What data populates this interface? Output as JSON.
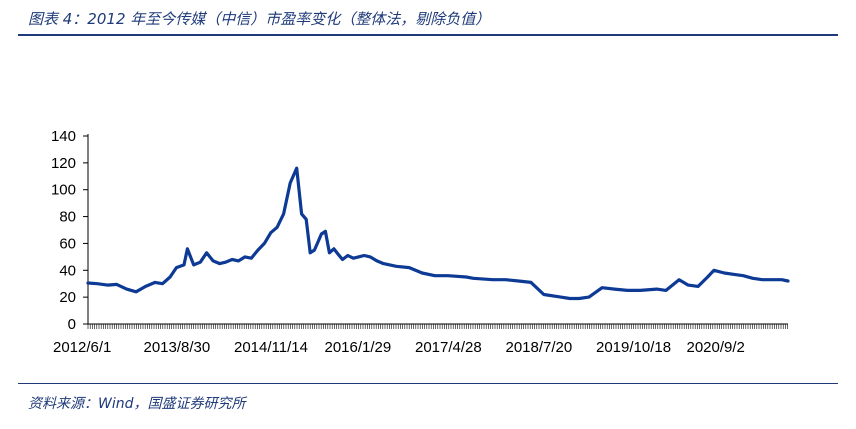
{
  "header": {
    "title": "图表 4：2012 年至今传媒（中信）市盈率变化（整体法，剔除负值）"
  },
  "footer": {
    "source": "资料来源：Wind，国盛证券研究所"
  },
  "colors": {
    "line": "#0d3a94",
    "accent": "#1f3a7a"
  },
  "chart_data": {
    "type": "line",
    "title": "",
    "xlabel": "",
    "ylabel": "",
    "ylim": [
      0,
      140
    ],
    "yticks": [
      0,
      20,
      40,
      60,
      80,
      100,
      120,
      140
    ],
    "ytick_labels": [
      "0",
      "20",
      "40",
      "60",
      "80",
      "100",
      "120",
      "140"
    ],
    "xtick_labels": [
      "2012/6/1",
      "2013/8/30",
      "2014/11/14",
      "2016/1/29",
      "2017/4/28",
      "2018/7/20",
      "2019/10/18",
      "2020/9/2"
    ],
    "grid": false,
    "legend": "none",
    "series": [
      {
        "x": [
          "2012/6/1",
          "2012/7/15",
          "2012/9/1",
          "2012/10/15",
          "2012/12/1",
          "2013/1/15",
          "2013/3/1",
          "2013/4/15",
          "2013/5/20",
          "2013/6/25",
          "2013/7/25",
          "2013/8/30",
          "2013/9/15",
          "2013/10/15",
          "2013/11/15",
          "2013/12/15",
          "2014/1/15",
          "2014/2/15",
          "2014/3/15",
          "2014/4/15",
          "2014/5/15",
          "2014/6/15",
          "2014/7/15",
          "2014/8/15",
          "2014/9/15",
          "2014/10/15",
          "2014/11/14",
          "2014/12/15",
          "2015/1/15",
          "2015/2/15",
          "2015/3/10",
          "2015/4/1",
          "2015/4/20",
          "2015/5/10",
          "2015/6/1",
          "2015/6/12",
          "2015/7/1",
          "2015/7/20",
          "2015/8/10",
          "2015/8/30",
          "2015/9/20",
          "2015/10/15",
          "2015/11/10",
          "2015/12/5",
          "2016/1/1",
          "2016/1/29",
          "2016/3/1",
          "2016/4/1",
          "2016/6/1",
          "2016/8/1",
          "2016/10/1",
          "2016/12/1",
          "2017/2/1",
          "2017/4/28",
          "2017/6/1",
          "2017/9/1",
          "2017/11/1",
          "2018/1/1",
          "2018/3/1",
          "2018/5/1",
          "2018/7/20",
          "2018/9/1",
          "2018/10/15",
          "2018/12/1",
          "2019/2/1",
          "2019/4/1",
          "2019/6/1",
          "2019/8/1",
          "2019/10/18",
          "2019/12/1",
          "2020/2/1",
          "2020/3/15",
          "2020/5/1",
          "2020/6/15",
          "2020/7/15",
          "2020/9/2",
          "2020/10/15",
          "2020/12/1",
          "2021/1/15",
          "2021/3/1",
          "2021/4/15",
          "2021/6/1",
          "2021/7/1"
        ],
        "values": [
          30.5,
          30,
          29,
          29.5,
          26,
          24,
          28,
          31,
          30,
          35,
          42,
          44,
          56,
          44,
          46,
          53,
          47,
          45,
          46,
          48,
          47,
          50,
          49,
          55,
          60,
          68,
          72,
          82,
          105,
          116,
          82,
          78,
          53,
          55,
          63,
          67,
          69,
          53,
          56,
          52,
          48,
          51,
          49,
          50,
          51,
          50,
          47,
          45,
          43,
          42,
          38,
          36,
          36,
          35,
          34,
          33,
          33,
          32,
          31,
          22,
          20,
          19,
          19,
          20,
          27,
          26,
          25,
          25,
          26,
          25,
          33,
          29,
          28,
          35,
          40,
          38,
          37,
          36,
          34,
          33,
          33,
          33,
          32
        ]
      }
    ]
  }
}
